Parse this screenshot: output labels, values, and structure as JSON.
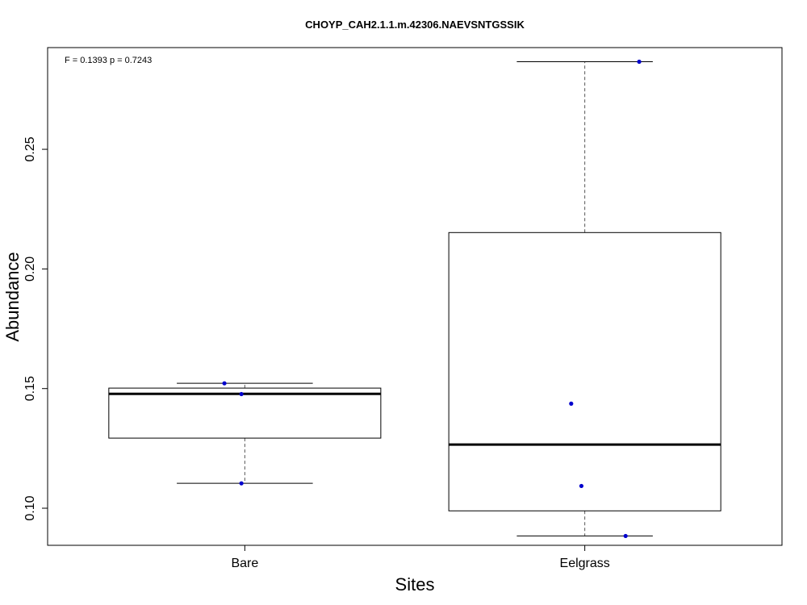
{
  "chart_data": {
    "type": "boxplot",
    "title": "CHOYP_CAH2.1.1.m.42306.NAEVSNTGSSIK",
    "annotation": "F = 0.1393 p = 0.7243",
    "xlabel": "Sites",
    "ylabel": "Abundance",
    "categories": [
      "Bare",
      "Eelgrass"
    ],
    "ylim": [
      0.0845,
      0.2925
    ],
    "yticks": [
      0.1,
      0.15,
      0.2,
      0.25
    ],
    "ytick_labels": [
      "0.10",
      "0.15",
      "0.20",
      "0.25"
    ],
    "boxes": [
      {
        "name": "Bare",
        "whisker_low": 0.1104,
        "q1": 0.1293,
        "median": 0.1478,
        "q3": 0.1502,
        "whisker_high": 0.1522,
        "points": [
          {
            "x_jitter": -0.06,
            "y": 0.1522
          },
          {
            "x_jitter": -0.01,
            "y": 0.1477
          },
          {
            "x_jitter": -0.01,
            "y": 0.1104
          }
        ]
      },
      {
        "name": "Eelgrass",
        "whisker_low": 0.0884,
        "q1": 0.0989,
        "median": 0.1266,
        "q3": 0.2152,
        "whisker_high": 0.2866,
        "points": [
          {
            "x_jitter": 0.16,
            "y": 0.2866
          },
          {
            "x_jitter": -0.04,
            "y": 0.1437
          },
          {
            "x_jitter": -0.01,
            "y": 0.1093
          },
          {
            "x_jitter": 0.12,
            "y": 0.0884
          }
        ]
      }
    ],
    "colors": {
      "points": "#0000CD",
      "box_stroke": "#000000",
      "median": "#000000",
      "whisker": "#555555"
    },
    "grid": false,
    "legend": "none"
  }
}
